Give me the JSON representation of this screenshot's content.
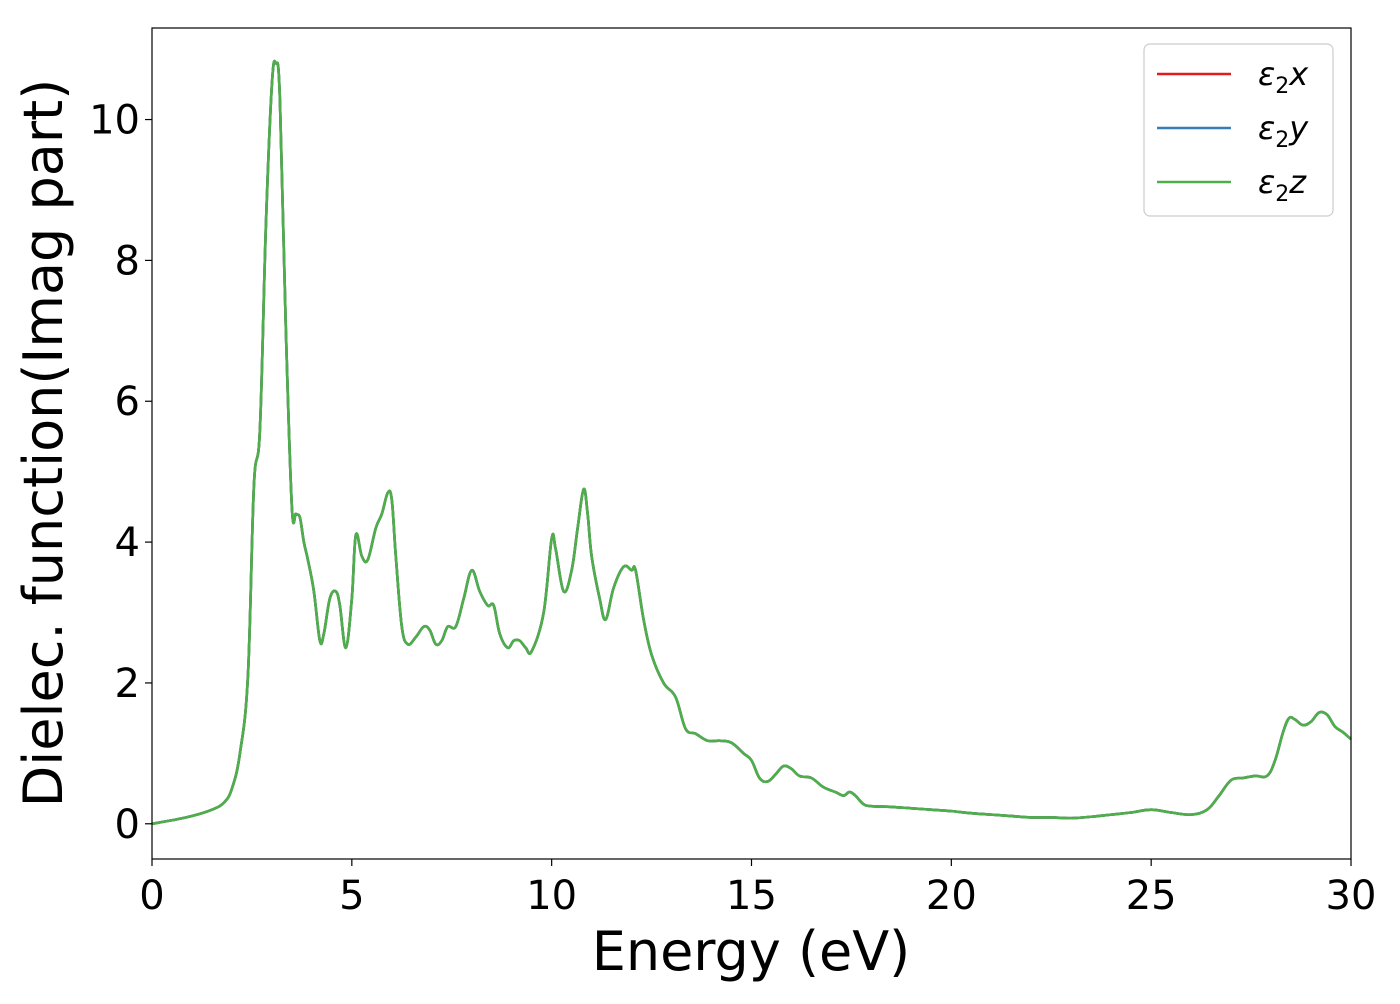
{
  "chart_data": {
    "type": "line",
    "title": "",
    "xlabel": "Energy (eV)",
    "ylabel": "Dielec. function(Imag part)",
    "xlim": [
      0,
      30
    ],
    "ylim": [
      -0.5,
      11.3
    ],
    "xticks": [
      0,
      5,
      10,
      15,
      20,
      25,
      30
    ],
    "xtick_labels": [
      "0",
      "5",
      "10",
      "15",
      "20",
      "25",
      "30"
    ],
    "yticks": [
      0,
      2,
      4,
      6,
      8,
      10
    ],
    "ytick_labels": [
      "0",
      "2",
      "4",
      "6",
      "8",
      "10"
    ],
    "grid": false,
    "legend_position": "top-right",
    "x": [
      0,
      0.5,
      1.0,
      1.5,
      1.8,
      2.0,
      2.2,
      2.4,
      2.55,
      2.7,
      2.85,
      3.0,
      3.1,
      3.2,
      3.35,
      3.5,
      3.6,
      3.7,
      3.8,
      3.9,
      4.05,
      4.2,
      4.3,
      4.45,
      4.6,
      4.7,
      4.85,
      5.0,
      5.1,
      5.25,
      5.4,
      5.6,
      5.75,
      5.9,
      6.0,
      6.1,
      6.25,
      6.4,
      6.6,
      6.8,
      6.95,
      7.1,
      7.25,
      7.4,
      7.6,
      7.8,
      8.0,
      8.2,
      8.4,
      8.55,
      8.7,
      8.9,
      9.05,
      9.2,
      9.35,
      9.5,
      9.8,
      10.0,
      10.1,
      10.3,
      10.5,
      10.65,
      10.8,
      10.9,
      11.0,
      11.2,
      11.35,
      11.55,
      11.8,
      12.0,
      12.1,
      12.3,
      12.5,
      12.8,
      13.1,
      13.35,
      13.6,
      13.9,
      14.2,
      14.5,
      14.8,
      15.0,
      15.2,
      15.4,
      15.6,
      15.8,
      16.0,
      16.2,
      16.5,
      16.8,
      17.1,
      17.3,
      17.45,
      17.6,
      17.8,
      18.0,
      18.5,
      19.0,
      19.5,
      20.0,
      20.5,
      21.0,
      21.5,
      22.0,
      22.5,
      23.0,
      23.5,
      24.0,
      24.5,
      25.0,
      25.5,
      26.0,
      26.4,
      26.7,
      27.0,
      27.3,
      27.6,
      27.9,
      28.1,
      28.3,
      28.45,
      28.6,
      28.8,
      29.0,
      29.2,
      29.4,
      29.6,
      29.8,
      30.0
    ],
    "series": [
      {
        "name": "ε₂x",
        "label_main": "ε",
        "label_sub": "2",
        "label_axis": "x",
        "color": "#e41a1c",
        "values": [
          0,
          0.05,
          0.11,
          0.2,
          0.3,
          0.5,
          1.0,
          2.1,
          4.8,
          5.6,
          8.5,
          10.5,
          10.8,
          10.3,
          7.0,
          4.5,
          4.4,
          4.35,
          4.0,
          3.75,
          3.3,
          2.6,
          2.7,
          3.2,
          3.3,
          3.1,
          2.5,
          3.2,
          4.1,
          3.8,
          3.75,
          4.2,
          4.4,
          4.7,
          4.6,
          3.8,
          2.8,
          2.55,
          2.65,
          2.8,
          2.75,
          2.55,
          2.6,
          2.8,
          2.8,
          3.2,
          3.6,
          3.3,
          3.1,
          3.1,
          2.7,
          2.5,
          2.6,
          2.6,
          2.5,
          2.45,
          3.0,
          4.05,
          3.9,
          3.3,
          3.6,
          4.2,
          4.75,
          4.4,
          3.8,
          3.2,
          2.9,
          3.35,
          3.65,
          3.6,
          3.6,
          2.9,
          2.4,
          2.0,
          1.8,
          1.35,
          1.28,
          1.18,
          1.18,
          1.15,
          1.0,
          0.9,
          0.65,
          0.6,
          0.7,
          0.82,
          0.78,
          0.68,
          0.65,
          0.52,
          0.45,
          0.4,
          0.45,
          0.4,
          0.28,
          0.25,
          0.24,
          0.22,
          0.2,
          0.18,
          0.15,
          0.13,
          0.11,
          0.09,
          0.09,
          0.08,
          0.1,
          0.13,
          0.16,
          0.2,
          0.16,
          0.13,
          0.2,
          0.4,
          0.62,
          0.65,
          0.68,
          0.68,
          0.9,
          1.3,
          1.5,
          1.48,
          1.4,
          1.45,
          1.58,
          1.55,
          1.38,
          1.3,
          1.2
        ]
      },
      {
        "name": "ε₂y",
        "label_main": "ε",
        "label_sub": "2",
        "label_axis": "y",
        "color": "#377eb8",
        "values": [
          0,
          0.05,
          0.11,
          0.2,
          0.3,
          0.5,
          1.0,
          2.1,
          4.8,
          5.6,
          8.5,
          10.5,
          10.8,
          10.3,
          7.0,
          4.5,
          4.4,
          4.35,
          4.0,
          3.75,
          3.3,
          2.6,
          2.7,
          3.2,
          3.3,
          3.1,
          2.5,
          3.2,
          4.1,
          3.8,
          3.75,
          4.2,
          4.4,
          4.7,
          4.6,
          3.8,
          2.8,
          2.55,
          2.65,
          2.8,
          2.75,
          2.55,
          2.6,
          2.8,
          2.8,
          3.2,
          3.6,
          3.3,
          3.1,
          3.1,
          2.7,
          2.5,
          2.6,
          2.6,
          2.5,
          2.45,
          3.0,
          4.05,
          3.9,
          3.3,
          3.6,
          4.2,
          4.75,
          4.4,
          3.8,
          3.2,
          2.9,
          3.35,
          3.65,
          3.6,
          3.6,
          2.9,
          2.4,
          2.0,
          1.8,
          1.35,
          1.28,
          1.18,
          1.18,
          1.15,
          1.0,
          0.9,
          0.65,
          0.6,
          0.7,
          0.82,
          0.78,
          0.68,
          0.65,
          0.52,
          0.45,
          0.4,
          0.45,
          0.4,
          0.28,
          0.25,
          0.24,
          0.22,
          0.2,
          0.18,
          0.15,
          0.13,
          0.11,
          0.09,
          0.09,
          0.08,
          0.1,
          0.13,
          0.16,
          0.2,
          0.16,
          0.13,
          0.2,
          0.4,
          0.62,
          0.65,
          0.68,
          0.68,
          0.9,
          1.3,
          1.5,
          1.48,
          1.4,
          1.45,
          1.58,
          1.55,
          1.38,
          1.3,
          1.2
        ]
      },
      {
        "name": "ε₂z",
        "label_main": "ε",
        "label_sub": "2",
        "label_axis": "z",
        "color": "#4daf4a",
        "values": [
          0,
          0.05,
          0.11,
          0.2,
          0.3,
          0.5,
          1.0,
          2.1,
          4.8,
          5.6,
          8.5,
          10.5,
          10.8,
          10.3,
          7.0,
          4.5,
          4.4,
          4.35,
          4.0,
          3.75,
          3.3,
          2.6,
          2.7,
          3.2,
          3.3,
          3.1,
          2.5,
          3.2,
          4.1,
          3.8,
          3.75,
          4.2,
          4.4,
          4.7,
          4.6,
          3.8,
          2.8,
          2.55,
          2.65,
          2.8,
          2.75,
          2.55,
          2.6,
          2.8,
          2.8,
          3.2,
          3.6,
          3.3,
          3.1,
          3.1,
          2.7,
          2.5,
          2.6,
          2.6,
          2.5,
          2.45,
          3.0,
          4.05,
          3.9,
          3.3,
          3.6,
          4.2,
          4.75,
          4.4,
          3.8,
          3.2,
          2.9,
          3.35,
          3.65,
          3.6,
          3.6,
          2.9,
          2.4,
          2.0,
          1.8,
          1.35,
          1.28,
          1.18,
          1.18,
          1.15,
          1.0,
          0.9,
          0.65,
          0.6,
          0.7,
          0.82,
          0.78,
          0.68,
          0.65,
          0.52,
          0.45,
          0.4,
          0.45,
          0.4,
          0.28,
          0.25,
          0.24,
          0.22,
          0.2,
          0.18,
          0.15,
          0.13,
          0.11,
          0.09,
          0.09,
          0.08,
          0.1,
          0.13,
          0.16,
          0.2,
          0.16,
          0.13,
          0.2,
          0.4,
          0.62,
          0.65,
          0.68,
          0.68,
          0.9,
          1.3,
          1.5,
          1.48,
          1.4,
          1.45,
          1.58,
          1.55,
          1.38,
          1.3,
          1.2
        ]
      }
    ]
  }
}
